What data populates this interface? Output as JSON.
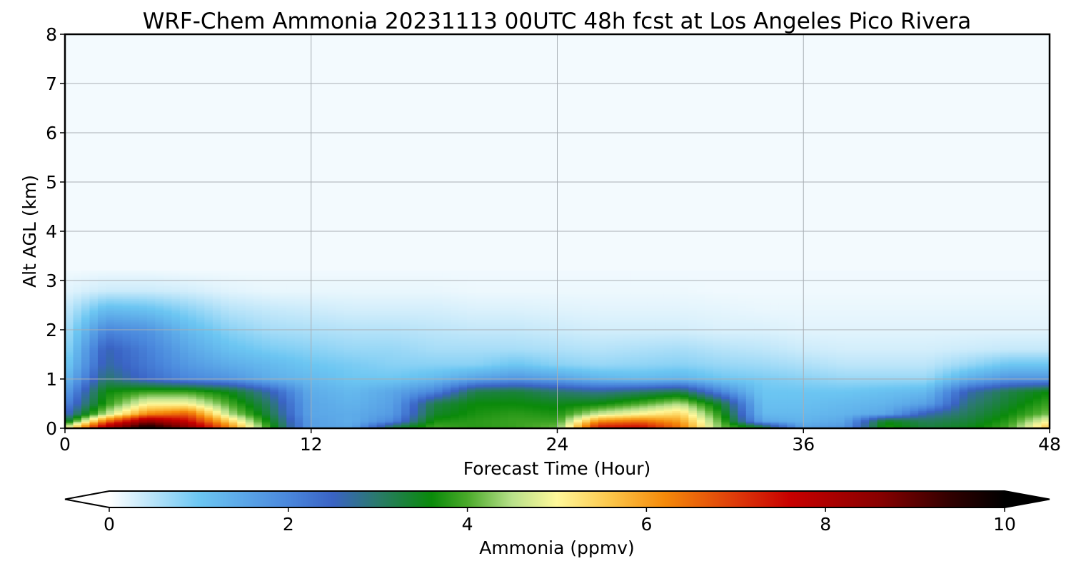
{
  "chart_data": {
    "type": "heatmap",
    "title": "WRF-Chem Ammonia  20231113 00UTC 48h fcst at Los Angeles Pico Rivera",
    "xlabel": "Forecast Time (Hour)",
    "ylabel": "Alt AGL (km)",
    "xlim": [
      0,
      48
    ],
    "ylim": [
      0,
      8
    ],
    "xticks": [
      0,
      12,
      24,
      36,
      48
    ],
    "yticks": [
      0,
      1,
      2,
      3,
      4,
      5,
      6,
      7,
      8
    ],
    "grid": true,
    "colorbar": {
      "label": "Ammonia  (ppmv)",
      "min": 0,
      "max": 10,
      "ticks": [
        0,
        2,
        4,
        6,
        8,
        10
      ],
      "extend": "both",
      "stops": [
        {
          "v": 0,
          "c": "#ffffff"
        },
        {
          "v": 1.0,
          "c": "#6cc6f2"
        },
        {
          "v": 2.0,
          "c": "#4a87dc"
        },
        {
          "v": 2.5,
          "c": "#3a63c4"
        },
        {
          "v": 3.0,
          "c": "#2a7a6a"
        },
        {
          "v": 3.6,
          "c": "#0a8a0a"
        },
        {
          "v": 4.0,
          "c": "#4aaa2a"
        },
        {
          "v": 4.5,
          "c": "#b8e08a"
        },
        {
          "v": 5.0,
          "c": "#fff89a"
        },
        {
          "v": 5.6,
          "c": "#fbc64a"
        },
        {
          "v": 6.2,
          "c": "#f58a0a"
        },
        {
          "v": 7.0,
          "c": "#dd3a0a"
        },
        {
          "v": 7.6,
          "c": "#c80000"
        },
        {
          "v": 8.6,
          "c": "#880000"
        },
        {
          "v": 9.4,
          "c": "#300000"
        },
        {
          "v": 10,
          "c": "#000000"
        }
      ]
    },
    "background_value": 0.08,
    "x": [
      0,
      2,
      4,
      6,
      8,
      10,
      12,
      14,
      16,
      18,
      20,
      22,
      24,
      26,
      28,
      30,
      32,
      34,
      36,
      38,
      40,
      42,
      44,
      46,
      48
    ],
    "altitudes": [
      0,
      0.15,
      0.3,
      0.5,
      0.75,
      1.0,
      1.3,
      1.6,
      2.0,
      2.4,
      2.8,
      3.2
    ],
    "values": [
      [
        5.0,
        3.2,
        2.4,
        2.0,
        1.6,
        1.2,
        0.9,
        0.7,
        0.55,
        0.4,
        0.2,
        0.1
      ],
      [
        8.5,
        6.5,
        4.5,
        3.8,
        3.6,
        3.0,
        2.7,
        2.6,
        2.0,
        1.2,
        0.35,
        0.12
      ],
      [
        10.2,
        8.5,
        6.2,
        5.0,
        3.9,
        2.4,
        2.2,
        2.1,
        1.8,
        1.1,
        0.35,
        0.12
      ],
      [
        8.8,
        7.6,
        6.6,
        5.0,
        3.9,
        2.0,
        1.7,
        1.5,
        1.2,
        0.8,
        0.3,
        0.1
      ],
      [
        6.5,
        5.5,
        4.5,
        4.0,
        3.5,
        1.8,
        1.4,
        1.1,
        0.8,
        0.5,
        0.2,
        0.1
      ],
      [
        3.8,
        3.5,
        3.2,
        3.0,
        2.6,
        1.4,
        1.2,
        0.9,
        0.6,
        0.4,
        0.15,
        0.1
      ],
      [
        1.6,
        1.6,
        1.5,
        1.5,
        1.4,
        1.2,
        1.0,
        0.8,
        0.55,
        0.35,
        0.15,
        0.1
      ],
      [
        1.5,
        1.4,
        1.4,
        1.3,
        1.2,
        1.0,
        0.9,
        0.7,
        0.5,
        0.3,
        0.15,
        0.1
      ],
      [
        3.5,
        2.0,
        1.7,
        1.6,
        1.5,
        1.0,
        0.8,
        0.7,
        0.5,
        0.3,
        0.15,
        0.1
      ],
      [
        4.0,
        3.7,
        3.4,
        3.2,
        2.0,
        1.2,
        0.8,
        0.6,
        0.45,
        0.3,
        0.15,
        0.1
      ],
      [
        3.8,
        3.8,
        3.7,
        3.6,
        3.2,
        1.6,
        0.8,
        0.6,
        0.4,
        0.25,
        0.12,
        0.1
      ],
      [
        3.9,
        3.9,
        3.8,
        3.6,
        3.3,
        1.8,
        1.0,
        0.6,
        0.4,
        0.25,
        0.12,
        0.1
      ],
      [
        4.2,
        3.9,
        3.7,
        3.5,
        3.0,
        1.6,
        0.8,
        0.55,
        0.35,
        0.22,
        0.12,
        0.1
      ],
      [
        7.6,
        6.2,
        4.6,
        3.6,
        2.8,
        1.3,
        0.7,
        0.5,
        0.3,
        0.2,
        0.12,
        0.1
      ],
      [
        7.8,
        6.5,
        5.0,
        4.0,
        3.0,
        1.2,
        0.75,
        0.55,
        0.3,
        0.2,
        0.12,
        0.1
      ],
      [
        6.5,
        6.0,
        5.4,
        4.5,
        3.2,
        1.3,
        0.8,
        0.6,
        0.3,
        0.2,
        0.12,
        0.1
      ],
      [
        4.2,
        4.0,
        3.7,
        3.3,
        2.0,
        1.0,
        0.7,
        0.5,
        0.25,
        0.18,
        0.1,
        0.1
      ],
      [
        3.8,
        1.5,
        1.2,
        1.1,
        1.0,
        0.9,
        0.65,
        0.45,
        0.25,
        0.15,
        0.1,
        0.1
      ],
      [
        1.6,
        1.3,
        1.2,
        1.1,
        1.0,
        0.8,
        0.55,
        0.35,
        0.2,
        0.15,
        0.1,
        0.1
      ],
      [
        1.8,
        1.5,
        1.3,
        1.2,
        1.0,
        0.7,
        0.45,
        0.3,
        0.2,
        0.15,
        0.1,
        0.1
      ],
      [
        3.8,
        3.5,
        1.5,
        1.3,
        1.1,
        0.7,
        0.45,
        0.3,
        0.2,
        0.15,
        0.1,
        0.1
      ],
      [
        3.3,
        3.1,
        2.6,
        1.6,
        1.2,
        0.7,
        0.45,
        0.3,
        0.2,
        0.15,
        0.1,
        0.1
      ],
      [
        3.5,
        3.3,
        3.1,
        2.9,
        2.6,
        1.4,
        0.7,
        0.35,
        0.2,
        0.15,
        0.1,
        0.1
      ],
      [
        4.0,
        3.8,
        3.6,
        3.4,
        3.2,
        1.8,
        1.0,
        0.4,
        0.2,
        0.15,
        0.1,
        0.1
      ],
      [
        5.8,
        5.0,
        4.2,
        3.9,
        3.6,
        1.8,
        1.0,
        0.4,
        0.2,
        0.15,
        0.1,
        0.1
      ]
    ]
  }
}
